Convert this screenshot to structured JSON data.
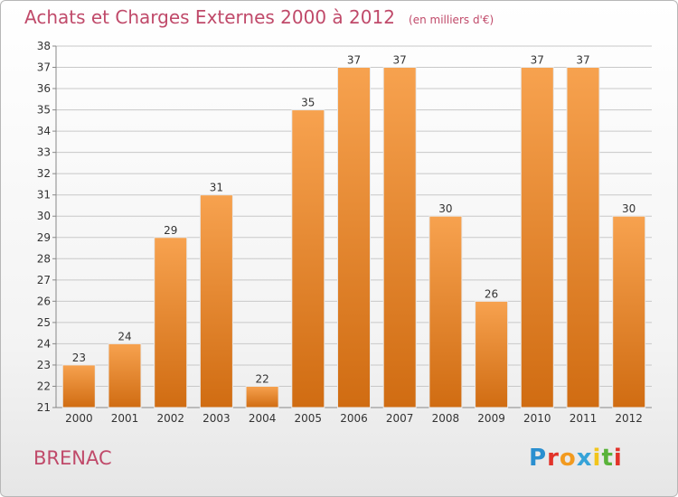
{
  "header": {
    "title": "Achats et Charges Externes 2000 à 2012",
    "subtitle": "(en milliers d'€)"
  },
  "footer": {
    "commune": "BRENAC",
    "brand": "Proxiti"
  },
  "colors": {
    "bar_light": "#f7a24f",
    "bar_dark": "#d06c12",
    "title": "#c04a6a",
    "grid": "#c8c8c8"
  },
  "chart_data": {
    "type": "bar",
    "title": "Achats et Charges Externes 2000 à 2012",
    "subtitle": "(en milliers d'€)",
    "xlabel": "",
    "ylabel": "",
    "categories": [
      "2000",
      "2001",
      "2002",
      "2003",
      "2004",
      "2005",
      "2006",
      "2007",
      "2008",
      "2009",
      "2010",
      "2011",
      "2012"
    ],
    "values": [
      23,
      24,
      29,
      31,
      22,
      35,
      37,
      37,
      30,
      26,
      37,
      37,
      30
    ],
    "ylim": [
      21,
      38
    ],
    "yticks": [
      21,
      22,
      23,
      24,
      25,
      26,
      27,
      28,
      29,
      30,
      31,
      32,
      33,
      34,
      35,
      36,
      37,
      38
    ],
    "grid": true,
    "data_labels": true
  }
}
